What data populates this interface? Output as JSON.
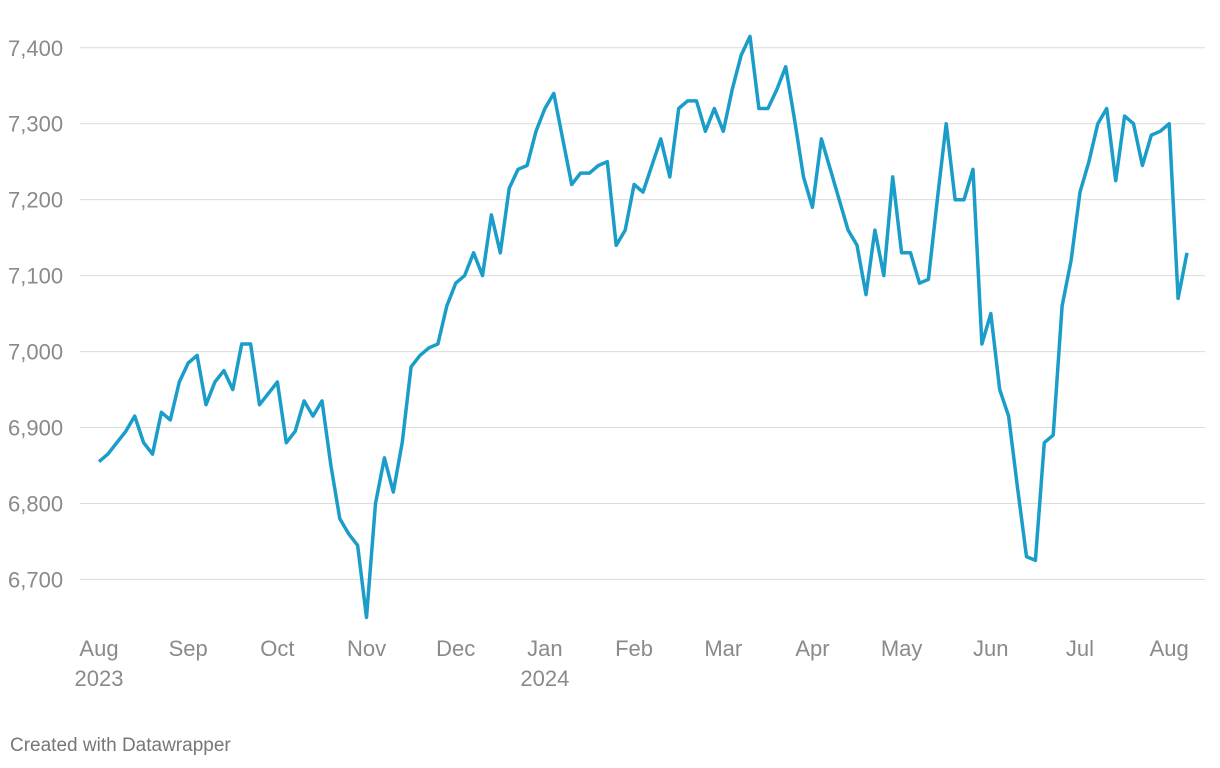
{
  "chart_data": {
    "type": "line",
    "categories": [
      "Aug 2023",
      null,
      null,
      null,
      null,
      null,
      null,
      null,
      null,
      null,
      "Sep",
      null,
      null,
      null,
      null,
      null,
      null,
      null,
      null,
      null,
      "Oct",
      null,
      null,
      null,
      null,
      null,
      null,
      null,
      null,
      null,
      "Nov",
      null,
      null,
      null,
      null,
      null,
      null,
      null,
      null,
      null,
      "Dec",
      null,
      null,
      null,
      null,
      null,
      null,
      null,
      null,
      null,
      "Jan 2024",
      null,
      null,
      null,
      null,
      null,
      null,
      null,
      null,
      null,
      "Feb",
      null,
      null,
      null,
      null,
      null,
      null,
      null,
      null,
      null,
      "Mar",
      null,
      null,
      null,
      null,
      null,
      null,
      null,
      null,
      null,
      "Apr",
      null,
      null,
      null,
      null,
      null,
      null,
      null,
      null,
      null,
      "May",
      null,
      null,
      null,
      null,
      null,
      null,
      null,
      null,
      null,
      "Jun",
      null,
      null,
      null,
      null,
      null,
      null,
      null,
      null,
      null,
      "Jul",
      null,
      null,
      null,
      null,
      null,
      null,
      null,
      null,
      null,
      "Aug",
      null,
      null
    ],
    "series": [
      {
        "color": "#1b9dc9",
        "values": [
          6855,
          6865,
          6880,
          6895,
          6915,
          6880,
          6865,
          6920,
          6910,
          6960,
          6985,
          6995,
          6930,
          6960,
          6975,
          6950,
          7010,
          7010,
          6930,
          6945,
          6960,
          6880,
          6895,
          6935,
          6915,
          6935,
          6850,
          6780,
          6760,
          6745,
          6650,
          6800,
          6860,
          6815,
          6880,
          6980,
          6995,
          7005,
          7010,
          7060,
          7090,
          7100,
          7130,
          7100,
          7180,
          7130,
          7215,
          7240,
          7245,
          7290,
          7320,
          7340,
          7280,
          7220,
          7235,
          7235,
          7245,
          7250,
          7140,
          7160,
          7220,
          7210,
          7245,
          7280,
          7230,
          7320,
          7330,
          7330,
          7290,
          7320,
          7290,
          7345,
          7390,
          7415,
          7320,
          7320,
          7345,
          7375,
          7305,
          7230,
          7190,
          7280,
          7240,
          7200,
          7160,
          7140,
          7075,
          7160,
          7100,
          7230,
          7130,
          7130,
          7090,
          7095,
          7200,
          7300,
          7200,
          7200,
          7240,
          7010,
          7050,
          6950,
          6915,
          6820,
          6730,
          6725,
          6880,
          6890,
          7060,
          7120,
          7210,
          7250,
          7300,
          7320,
          7225,
          7310,
          7300,
          7245,
          7285,
          7290,
          7300,
          7070,
          7130
        ]
      }
    ],
    "ylim": [
      6640,
      7430
    ],
    "yticks": [
      {
        "value": 6700,
        "label": "6,700"
      },
      {
        "value": 6800,
        "label": "6,800"
      },
      {
        "value": 6900,
        "label": "6,900"
      },
      {
        "value": 7000,
        "label": "7,000"
      },
      {
        "value": 7100,
        "label": "7,100"
      },
      {
        "value": 7200,
        "label": "7,200"
      },
      {
        "value": 7300,
        "label": "7,300"
      },
      {
        "value": 7400,
        "label": "7,400"
      }
    ],
    "grid": true,
    "credit": "Created with Datawrapper"
  }
}
